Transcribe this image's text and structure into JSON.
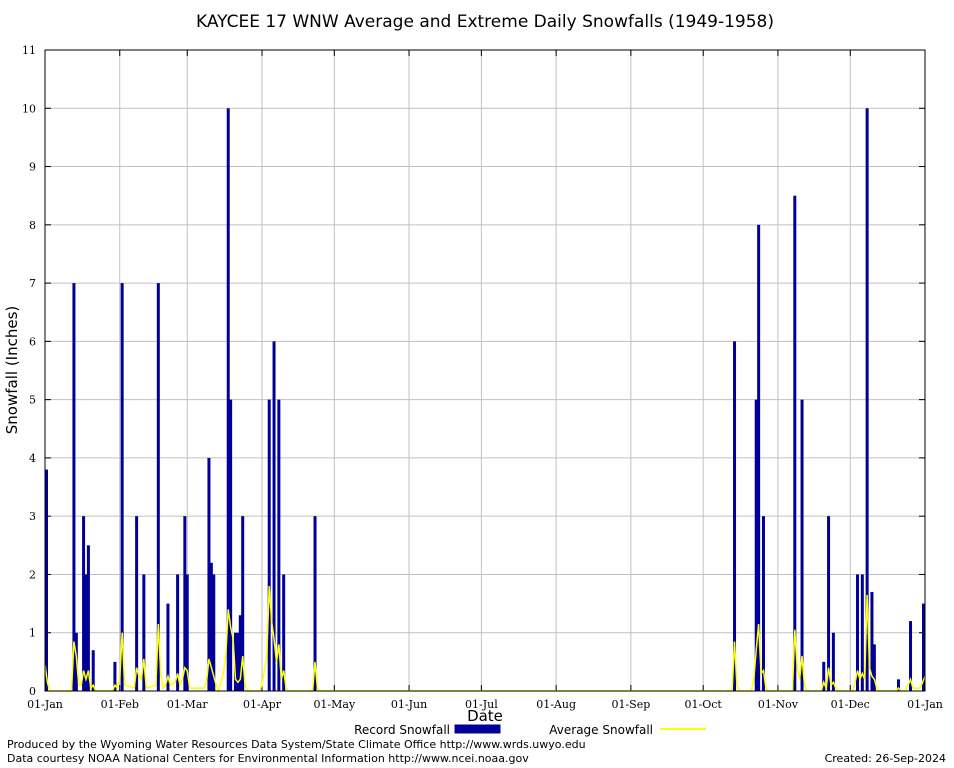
{
  "chart_data": {
    "type": "bar",
    "title": "KAYCEE 17 WNW Average and Extreme Daily Snowfalls (1949-1958)",
    "xlabel": "Date",
    "ylabel": "Snowfall (Inches)",
    "ylim": [
      0,
      11
    ],
    "yticks": [
      "0",
      "1",
      "2",
      "3",
      "4",
      "5",
      "6",
      "7",
      "8",
      "9",
      "10",
      "11"
    ],
    "xlim_days": [
      1,
      366
    ],
    "xticks": [
      {
        "label": "01-Jan",
        "day": 1
      },
      {
        "label": "01-Feb",
        "day": 32
      },
      {
        "label": "01-Mar",
        "day": 60
      },
      {
        "label": "01-Apr",
        "day": 91
      },
      {
        "label": "01-May",
        "day": 121
      },
      {
        "label": "01-Jun",
        "day": 152
      },
      {
        "label": "01-Jul",
        "day": 182
      },
      {
        "label": "01-Aug",
        "day": 213
      },
      {
        "label": "01-Sep",
        "day": 244
      },
      {
        "label": "01-Oct",
        "day": 274
      },
      {
        "label": "01-Nov",
        "day": 305
      },
      {
        "label": "01-Dec",
        "day": 335
      },
      {
        "label": "01-Jan",
        "day": 366
      }
    ],
    "grid": true,
    "legend_position": "bottom",
    "series": [
      {
        "name": "Record Snowfall",
        "kind": "bar",
        "color": "#000099",
        "points": [
          {
            "day": 1,
            "value": 3.8
          },
          {
            "day": 13,
            "value": 7.0
          },
          {
            "day": 14,
            "value": 1.0
          },
          {
            "day": 17,
            "value": 3.0
          },
          {
            "day": 18,
            "value": 2.0
          },
          {
            "day": 19,
            "value": 2.5
          },
          {
            "day": 21,
            "value": 0.7
          },
          {
            "day": 30,
            "value": 0.5
          },
          {
            "day": 33,
            "value": 7.0
          },
          {
            "day": 39,
            "value": 3.0
          },
          {
            "day": 42,
            "value": 2.0
          },
          {
            "day": 48,
            "value": 7.0
          },
          {
            "day": 52,
            "value": 1.5
          },
          {
            "day": 56,
            "value": 2.0
          },
          {
            "day": 59,
            "value": 3.0
          },
          {
            "day": 60,
            "value": 2.0
          },
          {
            "day": 69,
            "value": 4.0
          },
          {
            "day": 70,
            "value": 2.2
          },
          {
            "day": 71,
            "value": 2.0
          },
          {
            "day": 77,
            "value": 10.0
          },
          {
            "day": 78,
            "value": 5.0
          },
          {
            "day": 80,
            "value": 1.0
          },
          {
            "day": 81,
            "value": 1.0
          },
          {
            "day": 82,
            "value": 1.3
          },
          {
            "day": 83,
            "value": 3.0
          },
          {
            "day": 94,
            "value": 5.0
          },
          {
            "day": 96,
            "value": 6.0
          },
          {
            "day": 98,
            "value": 5.0
          },
          {
            "day": 100,
            "value": 2.0
          },
          {
            "day": 113,
            "value": 3.0
          },
          {
            "day": 287,
            "value": 6.0
          },
          {
            "day": 296,
            "value": 5.0
          },
          {
            "day": 297,
            "value": 8.0
          },
          {
            "day": 299,
            "value": 3.0
          },
          {
            "day": 312,
            "value": 8.5
          },
          {
            "day": 315,
            "value": 5.0
          },
          {
            "day": 324,
            "value": 0.5
          },
          {
            "day": 326,
            "value": 3.0
          },
          {
            "day": 328,
            "value": 1.0
          },
          {
            "day": 338,
            "value": 2.0
          },
          {
            "day": 340,
            "value": 2.0
          },
          {
            "day": 342,
            "value": 10.0
          },
          {
            "day": 344,
            "value": 1.7
          },
          {
            "day": 345,
            "value": 0.8
          },
          {
            "day": 355,
            "value": 0.2
          },
          {
            "day": 360,
            "value": 1.2
          },
          {
            "day": 366,
            "value": 1.5
          }
        ]
      },
      {
        "name": "Average Snowfall",
        "kind": "line",
        "color": "#ffff00",
        "points": [
          {
            "day": 1,
            "value": 0.45
          },
          {
            "day": 2,
            "value": 0.15
          },
          {
            "day": 3,
            "value": 0.0
          },
          {
            "day": 12,
            "value": 0.0
          },
          {
            "day": 13,
            "value": 0.85
          },
          {
            "day": 14,
            "value": 0.6
          },
          {
            "day": 15,
            "value": 0.1
          },
          {
            "day": 16,
            "value": 0.1
          },
          {
            "day": 17,
            "value": 0.35
          },
          {
            "day": 18,
            "value": 0.2
          },
          {
            "day": 19,
            "value": 0.35
          },
          {
            "day": 20,
            "value": 0.05
          },
          {
            "day": 21,
            "value": 0.1
          },
          {
            "day": 22,
            "value": 0.0
          },
          {
            "day": 29,
            "value": 0.0
          },
          {
            "day": 30,
            "value": 0.1
          },
          {
            "day": 31,
            "value": 0.05
          },
          {
            "day": 32,
            "value": 0.2
          },
          {
            "day": 33,
            "value": 1.0
          },
          {
            "day": 34,
            "value": 0.1
          },
          {
            "day": 38,
            "value": 0.05
          },
          {
            "day": 39,
            "value": 0.4
          },
          {
            "day": 40,
            "value": 0.25
          },
          {
            "day": 41,
            "value": 0.2
          },
          {
            "day": 42,
            "value": 0.55
          },
          {
            "day": 43,
            "value": 0.05
          },
          {
            "day": 47,
            "value": 0.1
          },
          {
            "day": 48,
            "value": 1.15
          },
          {
            "day": 49,
            "value": 0.3
          },
          {
            "day": 50,
            "value": 0.05
          },
          {
            "day": 51,
            "value": 0.1
          },
          {
            "day": 52,
            "value": 0.25
          },
          {
            "day": 53,
            "value": 0.1
          },
          {
            "day": 55,
            "value": 0.15
          },
          {
            "day": 56,
            "value": 0.3
          },
          {
            "day": 57,
            "value": 0.1
          },
          {
            "day": 58,
            "value": 0.2
          },
          {
            "day": 59,
            "value": 0.4
          },
          {
            "day": 60,
            "value": 0.35
          },
          {
            "day": 61,
            "value": 0.05
          },
          {
            "day": 67,
            "value": 0.05
          },
          {
            "day": 68,
            "value": 0.15
          },
          {
            "day": 69,
            "value": 0.55
          },
          {
            "day": 70,
            "value": 0.4
          },
          {
            "day": 71,
            "value": 0.25
          },
          {
            "day": 72,
            "value": 0.1
          },
          {
            "day": 73,
            "value": 0.0
          },
          {
            "day": 75,
            "value": 0.3
          },
          {
            "day": 76,
            "value": 0.6
          },
          {
            "day": 77,
            "value": 1.4
          },
          {
            "day": 78,
            "value": 1.1
          },
          {
            "day": 79,
            "value": 0.9
          },
          {
            "day": 80,
            "value": 0.2
          },
          {
            "day": 81,
            "value": 0.15
          },
          {
            "day": 82,
            "value": 0.2
          },
          {
            "day": 83,
            "value": 0.6
          },
          {
            "day": 84,
            "value": 0.1
          },
          {
            "day": 85,
            "value": 0.0
          },
          {
            "day": 90,
            "value": 0.0
          },
          {
            "day": 91,
            "value": 0.1
          },
          {
            "day": 93,
            "value": 0.6
          },
          {
            "day": 94,
            "value": 1.8
          },
          {
            "day": 95,
            "value": 1.2
          },
          {
            "day": 96,
            "value": 0.9
          },
          {
            "day": 97,
            "value": 0.5
          },
          {
            "day": 98,
            "value": 0.8
          },
          {
            "day": 99,
            "value": 0.2
          },
          {
            "day": 100,
            "value": 0.35
          },
          {
            "day": 101,
            "value": 0.05
          },
          {
            "day": 102,
            "value": 0.0
          },
          {
            "day": 112,
            "value": 0.0
          },
          {
            "day": 113,
            "value": 0.5
          },
          {
            "day": 114,
            "value": 0.05
          },
          {
            "day": 115,
            "value": 0.0
          },
          {
            "day": 286,
            "value": 0.0
          },
          {
            "day": 287,
            "value": 0.85
          },
          {
            "day": 288,
            "value": 0.1
          },
          {
            "day": 289,
            "value": 0.0
          },
          {
            "day": 294,
            "value": 0.0
          },
          {
            "day": 295,
            "value": 0.2
          },
          {
            "day": 296,
            "value": 0.7
          },
          {
            "day": 297,
            "value": 1.15
          },
          {
            "day": 298,
            "value": 0.3
          },
          {
            "day": 299,
            "value": 0.35
          },
          {
            "day": 300,
            "value": 0.05
          },
          {
            "day": 301,
            "value": 0.0
          },
          {
            "day": 311,
            "value": 0.0
          },
          {
            "day": 312,
            "value": 1.05
          },
          {
            "day": 313,
            "value": 0.4
          },
          {
            "day": 314,
            "value": 0.2
          },
          {
            "day": 315,
            "value": 0.6
          },
          {
            "day": 316,
            "value": 0.1
          },
          {
            "day": 317,
            "value": 0.0
          },
          {
            "day": 323,
            "value": 0.0
          },
          {
            "day": 324,
            "value": 0.15
          },
          {
            "day": 325,
            "value": 0.05
          },
          {
            "day": 326,
            "value": 0.4
          },
          {
            "day": 327,
            "value": 0.1
          },
          {
            "day": 328,
            "value": 0.15
          },
          {
            "day": 329,
            "value": 0.05
          },
          {
            "day": 330,
            "value": 0.0
          },
          {
            "day": 336,
            "value": 0.0
          },
          {
            "day": 337,
            "value": 0.15
          },
          {
            "day": 338,
            "value": 0.35
          },
          {
            "day": 339,
            "value": 0.2
          },
          {
            "day": 340,
            "value": 0.3
          },
          {
            "day": 341,
            "value": 0.2
          },
          {
            "day": 342,
            "value": 1.65
          },
          {
            "day": 343,
            "value": 0.4
          },
          {
            "day": 344,
            "value": 0.25
          },
          {
            "day": 345,
            "value": 0.2
          },
          {
            "day": 346,
            "value": 0.05
          },
          {
            "day": 347,
            "value": 0.0
          },
          {
            "day": 354,
            "value": 0.0
          },
          {
            "day": 355,
            "value": 0.05
          },
          {
            "day": 356,
            "value": 0.0
          },
          {
            "day": 358,
            "value": 0.0
          },
          {
            "day": 359,
            "value": 0.1
          },
          {
            "day": 360,
            "value": 0.2
          },
          {
            "day": 361,
            "value": 0.05
          },
          {
            "day": 364,
            "value": 0.05
          },
          {
            "day": 365,
            "value": 0.15
          },
          {
            "day": 366,
            "value": 0.25
          }
        ]
      }
    ]
  },
  "footer": {
    "produced_by": "Produced by the Wyoming Water Resources Data System/State Climate Office http://www.wrds.uwyo.edu",
    "data_courtesy": "Data courtesy NOAA National Centers for Environmental Information http://www.ncei.noaa.gov",
    "created": "Created:  26-Sep-2024"
  }
}
